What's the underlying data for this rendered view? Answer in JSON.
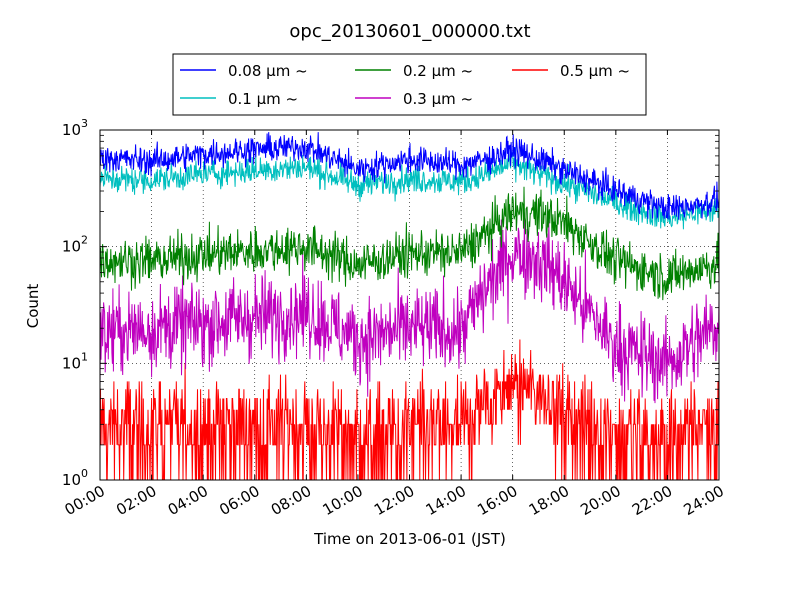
{
  "chart_data": {
    "type": "line",
    "title": "opc_20130601_000000.txt",
    "xlabel": "Time on 2013-06-01 (JST)",
    "ylabel": "Count",
    "xlim_hours": [
      0,
      24
    ],
    "ylim": [
      1,
      1000
    ],
    "yscale": "log",
    "grid": true,
    "legend_position": "top-center",
    "x_ticks": [
      "00:00",
      "02:00",
      "04:00",
      "06:00",
      "08:00",
      "10:00",
      "12:00",
      "14:00",
      "16:00",
      "18:00",
      "20:00",
      "22:00",
      "24:00"
    ],
    "y_ticks": [
      {
        "base": "10",
        "exp": "0",
        "value": 1
      },
      {
        "base": "10",
        "exp": "1",
        "value": 10
      },
      {
        "base": "10",
        "exp": "2",
        "value": 100
      },
      {
        "base": "10",
        "exp": "3",
        "value": 1000
      }
    ],
    "x_hours": [
      0,
      2,
      4,
      6,
      8,
      10,
      12,
      14,
      15,
      16,
      17,
      18,
      20,
      22,
      24
    ],
    "series": [
      {
        "name": "0.08 μm ~",
        "color": "#0000ff",
        "noise": 0.06,
        "values": [
          580,
          540,
          620,
          680,
          720,
          460,
          560,
          500,
          560,
          680,
          560,
          450,
          300,
          210,
          250
        ]
      },
      {
        "name": "0.1 μm ~",
        "color": "#00bfbf",
        "noise": 0.06,
        "values": [
          380,
          370,
          420,
          450,
          480,
          340,
          380,
          360,
          420,
          520,
          420,
          350,
          240,
          175,
          210
        ]
      },
      {
        "name": "0.2 μm ~",
        "color": "#008000",
        "noise": 0.1,
        "values": [
          78,
          75,
          85,
          92,
          100,
          70,
          88,
          88,
          130,
          200,
          190,
          160,
          75,
          55,
          72
        ]
      },
      {
        "name": "0.3 μm ~",
        "color": "#bf00bf",
        "noise": 0.18,
        "values": [
          18,
          20,
          22,
          25,
          28,
          16,
          20,
          19,
          45,
          90,
          80,
          50,
          14,
          10,
          22
        ]
      },
      {
        "name": "0.5 μm ~",
        "color": "#ff0000",
        "noise": 0,
        "values": [
          3,
          3,
          3,
          3,
          3,
          2.5,
          2.8,
          2.8,
          5,
          7,
          6,
          4,
          2.5,
          2.2,
          3
        ]
      }
    ]
  }
}
